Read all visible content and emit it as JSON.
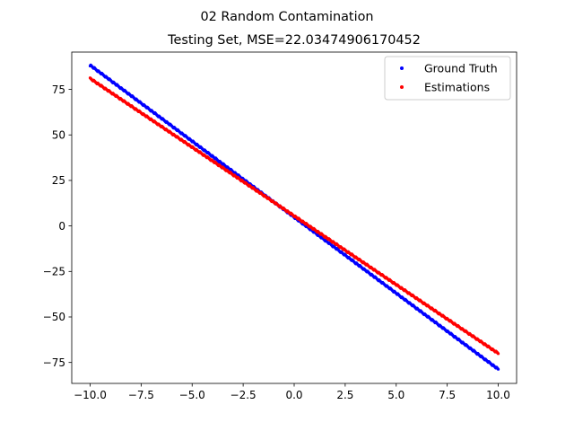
{
  "chart_data": {
    "type": "scatter",
    "suptitle": "02 Random Contamination",
    "title": "Testing Set, MSE=22.03474906170452",
    "xlabel": "",
    "ylabel": "",
    "xlim": [
      -10.9,
      10.9
    ],
    "ylim": [
      -86.5,
      95.5
    ],
    "xticks": [
      -10.0,
      -7.5,
      -5.0,
      -2.5,
      0.0,
      2.5,
      5.0,
      7.5,
      10.0
    ],
    "xtick_labels": [
      "−10.0",
      "−7.5",
      "−5.0",
      "−2.5",
      "0.0",
      "2.5",
      "5.0",
      "7.5",
      "10.0"
    ],
    "yticks": [
      -75,
      -50,
      -25,
      0,
      25,
      50,
      75
    ],
    "ytick_labels": [
      "−75",
      "−50",
      "−25",
      "0",
      "25",
      "50",
      "75"
    ],
    "grid": false,
    "legend_position": "top-right",
    "series": [
      {
        "name": "Ground Truth",
        "color": "#0000ff",
        "x_range": [
          -10,
          10
        ],
        "line": {
          "slope": -8.35,
          "intercept": 4.8
        },
        "sample_x": [
          -10,
          -7.5,
          -5,
          -2.5,
          0,
          2.5,
          5,
          7.5,
          10
        ],
        "sample_y": [
          88.3,
          67.4,
          46.6,
          25.7,
          4.8,
          -16.1,
          -37.0,
          -57.8,
          -78.7
        ]
      },
      {
        "name": "Estimations",
        "color": "#ff0000",
        "x_range": [
          -10,
          10
        ],
        "line": {
          "slope": -7.55,
          "intercept": 5.5
        },
        "sample_x": [
          -10,
          -7.5,
          -5,
          -2.5,
          0,
          2.5,
          5,
          7.5,
          10
        ],
        "sample_y": [
          81.0,
          62.1,
          43.3,
          24.4,
          5.5,
          -13.4,
          -32.3,
          -51.1,
          -70.0
        ]
      }
    ]
  }
}
